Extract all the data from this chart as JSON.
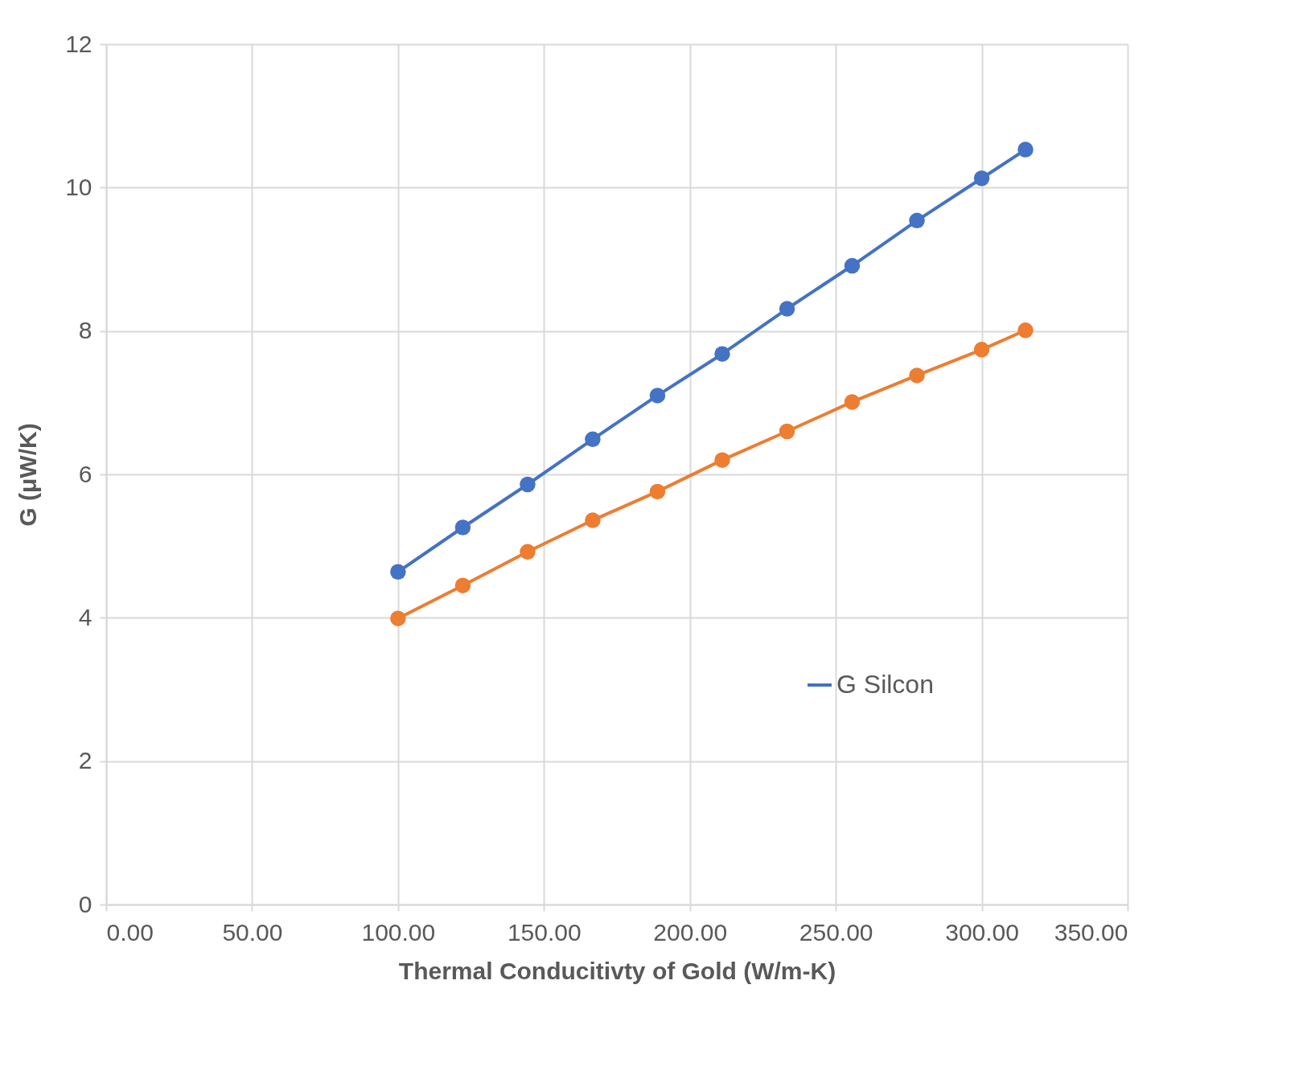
{
  "chart_data": {
    "type": "line",
    "xlabel": "Thermal Conducitivty of Gold (W/m-K)",
    "ylabel": "G (μW/K)",
    "x": [
      100,
      122.2,
      144.4,
      166.7,
      188.9,
      211.1,
      233.3,
      255.6,
      277.8,
      300,
      315
    ],
    "series": [
      {
        "name": "G Silcon",
        "color": "#4472c4",
        "values": [
          4.64,
          5.26,
          5.86,
          6.49,
          7.1,
          7.68,
          8.31,
          8.91,
          9.54,
          10.13,
          10.53
        ]
      },
      {
        "color": "#ed7d31",
        "values": [
          3.99,
          4.45,
          4.92,
          5.36,
          5.76,
          6.2,
          6.6,
          7.01,
          7.38,
          7.74,
          8.01
        ]
      }
    ],
    "xlim": [
      0,
      350
    ],
    "xticks": [
      {
        "value": 0,
        "label": "0.00"
      },
      {
        "value": 50,
        "label": "50.00"
      },
      {
        "value": 100,
        "label": "100.00"
      },
      {
        "value": 150,
        "label": "150.00"
      },
      {
        "value": 200,
        "label": "200.00"
      },
      {
        "value": 250,
        "label": "250.00"
      },
      {
        "value": 300,
        "label": "300.00"
      },
      {
        "value": 350,
        "label": "350.00"
      }
    ],
    "ylim": [
      0,
      12
    ],
    "yticks": [
      0,
      2,
      4,
      6,
      8,
      10,
      12
    ],
    "grid": true,
    "legend": "bottom right",
    "marker": "circle",
    "line_style": "solid"
  }
}
